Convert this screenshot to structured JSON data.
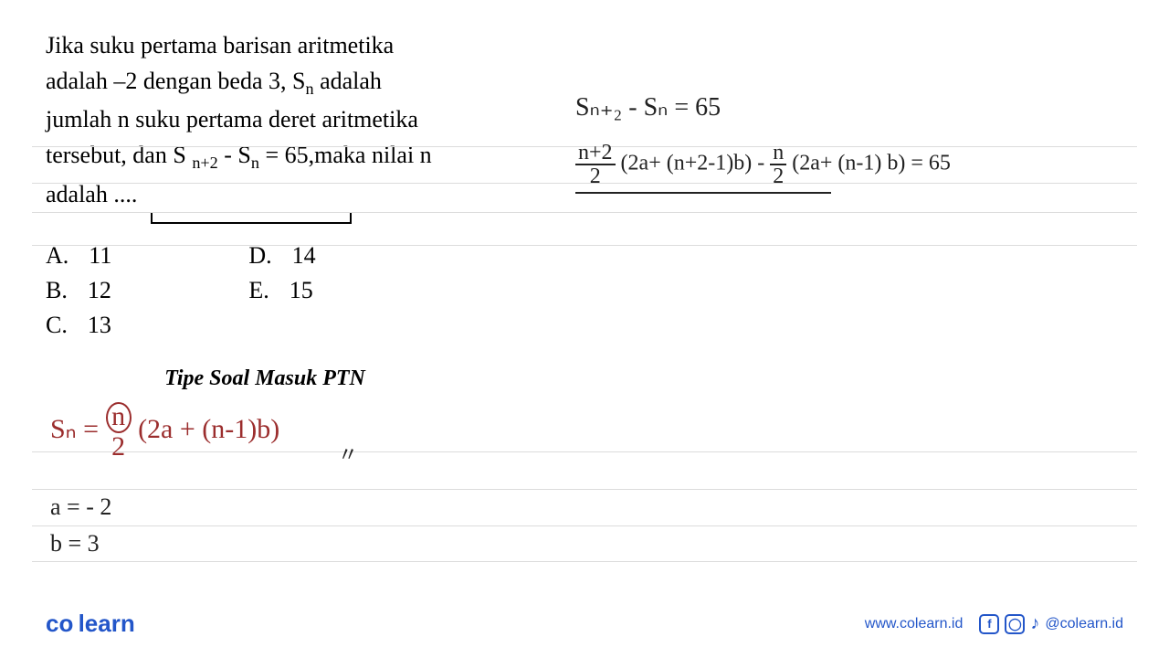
{
  "question": {
    "line1": "Jika suku pertama barisan aritmetika",
    "line2_a": "adalah –2 dengan beda 3, S",
    "line2_sub": "n",
    "line2_b": " adalah",
    "line3": "jumlah n suku pertama deret aritmetika",
    "line4_a": "tersebut, dan S ",
    "line4_sub1": "n+2",
    "line4_b": "  - S",
    "line4_sub2": "n",
    "line4_c": "  = 65,maka nilai n",
    "line5": "adalah ...."
  },
  "options": {
    "a_label": "A.",
    "a_val": "11",
    "b_label": "B.",
    "b_val": "12",
    "c_label": "C.",
    "c_val": "13",
    "d_label": "D.",
    "d_val": "14",
    "e_label": "E.",
    "e_val": "15"
  },
  "tipe_soal": "Tipe Soal Masuk PTN",
  "handwriting": {
    "formula_prefix": "Sₙ = ",
    "formula_n": "n",
    "formula_2": "2",
    "formula_suffix": " (2a + (n-1)b)",
    "ticks": "〃",
    "a_val": "a = - 2",
    "b_val": "b = 3",
    "eq1": "Sₙ₊₂  -  Sₙ  =  65",
    "eq2_f1_top": "n+2",
    "eq2_f1_bot": "2",
    "eq2_mid1": " (2a+ (n+2-1)b) - ",
    "eq2_f2_top": "n",
    "eq2_f2_bot": "2",
    "eq2_mid2": " (2a+ (n-1) b) = 65"
  },
  "rules": {
    "positions": [
      160,
      200,
      232,
      268,
      494,
      535,
      575,
      614
    ],
    "color": "#dcdcdc"
  },
  "footer": {
    "logo_a": "co",
    "logo_b": "learn",
    "url": "www.colearn.id",
    "handle": "@colearn.id",
    "icons": {
      "facebook": "f",
      "instagram": "◯",
      "tiktok": "♪"
    }
  },
  "colors": {
    "brand": "#2356c9",
    "handwriting_red": "#9b2d2d",
    "handwriting_black": "#222222",
    "rule": "#dcdcdc"
  }
}
